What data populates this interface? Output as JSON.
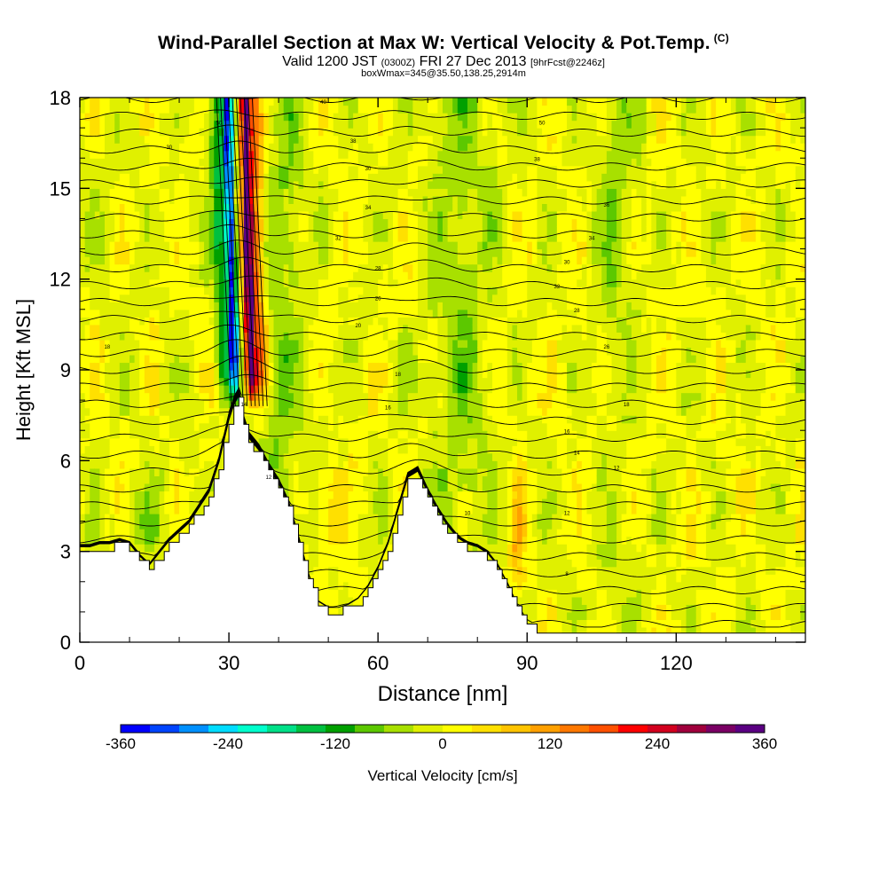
{
  "header": {
    "title": "Wind-Parallel Section at Max W: Vertical Velocity & Pot.Temp.",
    "title_mark": "(C)",
    "valid_main": "Valid 1200 JST",
    "valid_utc": "(0300Z)",
    "valid_date": "FRI 27 Dec 2013",
    "forecast": "[9hrFcst@2246z]",
    "boxline": "boxWmax=345@35.50,138.25,2914m"
  },
  "chart_data": {
    "type": "heatmap",
    "title": "Wind-Parallel Section at Max W: Vertical Velocity & Pot.Temp.",
    "xlabel": "Distance [nm]",
    "ylabel": "Height [Kft MSL]",
    "xlim": [
      0,
      146
    ],
    "ylim": [
      0,
      18
    ],
    "x_ticks": [
      0,
      30,
      60,
      90,
      120
    ],
    "y_ticks": [
      0,
      3,
      6,
      9,
      12,
      15,
      18
    ],
    "x_minor_step": 10,
    "y_minor_step": 1,
    "colorbar": {
      "label": "Vertical Velocity [cm/s]",
      "range": [
        -360,
        360
      ],
      "ticks": [
        -360,
        -240,
        -120,
        0,
        120,
        240,
        360
      ],
      "colors": [
        "#0000ff",
        "#0044ff",
        "#0090ff",
        "#00dcff",
        "#00ffcc",
        "#00e088",
        "#00c040",
        "#00a000",
        "#5cc800",
        "#a8e000",
        "#e0f000",
        "#ffff00",
        "#ffe000",
        "#ffc400",
        "#ffa000",
        "#ff7800",
        "#ff5000",
        "#ff0000",
        "#d2001e",
        "#a0003c",
        "#7a0064",
        "#5a0082"
      ]
    },
    "terrain": [
      [
        0,
        3.0
      ],
      [
        2,
        3.0
      ],
      [
        4,
        3.1
      ],
      [
        6,
        3.1
      ],
      [
        8,
        3.2
      ],
      [
        10,
        3.1
      ],
      [
        12,
        2.7
      ],
      [
        14,
        2.4
      ],
      [
        16,
        2.8
      ],
      [
        18,
        3.2
      ],
      [
        20,
        3.5
      ],
      [
        22,
        3.8
      ],
      [
        24,
        4.3
      ],
      [
        26,
        4.8
      ],
      [
        28,
        5.8
      ],
      [
        30,
        7.2
      ],
      [
        31,
        7.7
      ],
      [
        32,
        8.0
      ],
      [
        33,
        7.1
      ],
      [
        34,
        6.6
      ],
      [
        36,
        6.2
      ],
      [
        38,
        5.6
      ],
      [
        40,
        5.1
      ],
      [
        42,
        4.4
      ],
      [
        44,
        3.3
      ],
      [
        46,
        2.1
      ],
      [
        48,
        1.2
      ],
      [
        50,
        1.0
      ],
      [
        52,
        1.0
      ],
      [
        54,
        1.1
      ],
      [
        56,
        1.3
      ],
      [
        58,
        1.7
      ],
      [
        60,
        2.3
      ],
      [
        62,
        3.1
      ],
      [
        64,
        4.2
      ],
      [
        66,
        5.3
      ],
      [
        68,
        5.5
      ],
      [
        70,
        4.8
      ],
      [
        72,
        4.2
      ],
      [
        74,
        3.7
      ],
      [
        76,
        3.3
      ],
      [
        78,
        3.1
      ],
      [
        80,
        3.0
      ],
      [
        82,
        2.8
      ],
      [
        84,
        2.4
      ],
      [
        86,
        1.8
      ],
      [
        88,
        1.1
      ],
      [
        90,
        0.6
      ],
      [
        92,
        0.4
      ],
      [
        94,
        0.35
      ],
      [
        96,
        0.35
      ],
      [
        100,
        0.35
      ],
      [
        110,
        0.35
      ],
      [
        120,
        0.35
      ],
      [
        130,
        0.35
      ],
      [
        140,
        0.35
      ],
      [
        146,
        0.35
      ]
    ],
    "updraft": {
      "x_center": 34.5,
      "peak_w": 345
    },
    "downdraft": {
      "x_center": 31.2,
      "peak_w": -320
    },
    "theta_contour_labels": [
      {
        "x": 5.5,
        "y": 9.7,
        "text": "18"
      },
      {
        "x": 18,
        "y": 16.3,
        "text": "30"
      },
      {
        "x": 28,
        "y": 17.1,
        "text": "50"
      },
      {
        "x": 49,
        "y": 17.8,
        "text": "40"
      },
      {
        "x": 55,
        "y": 16.5,
        "text": "38"
      },
      {
        "x": 58,
        "y": 15.6,
        "text": "30"
      },
      {
        "x": 58,
        "y": 14.3,
        "text": "34"
      },
      {
        "x": 52,
        "y": 13.3,
        "text": "32"
      },
      {
        "x": 60,
        "y": 12.3,
        "text": "28"
      },
      {
        "x": 60,
        "y": 11.3,
        "text": "26"
      },
      {
        "x": 56,
        "y": 10.4,
        "text": "20"
      },
      {
        "x": 64,
        "y": 8.8,
        "text": "18"
      },
      {
        "x": 62,
        "y": 7.7,
        "text": "16"
      },
      {
        "x": 93,
        "y": 17.1,
        "text": "50"
      },
      {
        "x": 92,
        "y": 15.9,
        "text": "38"
      },
      {
        "x": 106,
        "y": 14.4,
        "text": "36"
      },
      {
        "x": 103,
        "y": 13.3,
        "text": "34"
      },
      {
        "x": 98,
        "y": 12.5,
        "text": "30"
      },
      {
        "x": 96,
        "y": 11.7,
        "text": "32"
      },
      {
        "x": 100,
        "y": 10.9,
        "text": "28"
      },
      {
        "x": 106,
        "y": 9.7,
        "text": "26"
      },
      {
        "x": 110,
        "y": 7.8,
        "text": "18"
      },
      {
        "x": 98,
        "y": 6.9,
        "text": "16"
      },
      {
        "x": 100,
        "y": 6.2,
        "text": "14"
      },
      {
        "x": 108,
        "y": 5.7,
        "text": "12"
      },
      {
        "x": 78,
        "y": 4.2,
        "text": "10"
      },
      {
        "x": 98,
        "y": 4.2,
        "text": "12"
      },
      {
        "x": 98,
        "y": 2.2,
        "text": "8"
      },
      {
        "x": 33,
        "y": 7.8,
        "text": "14"
      },
      {
        "x": 38,
        "y": 5.4,
        "text": "12"
      }
    ]
  }
}
